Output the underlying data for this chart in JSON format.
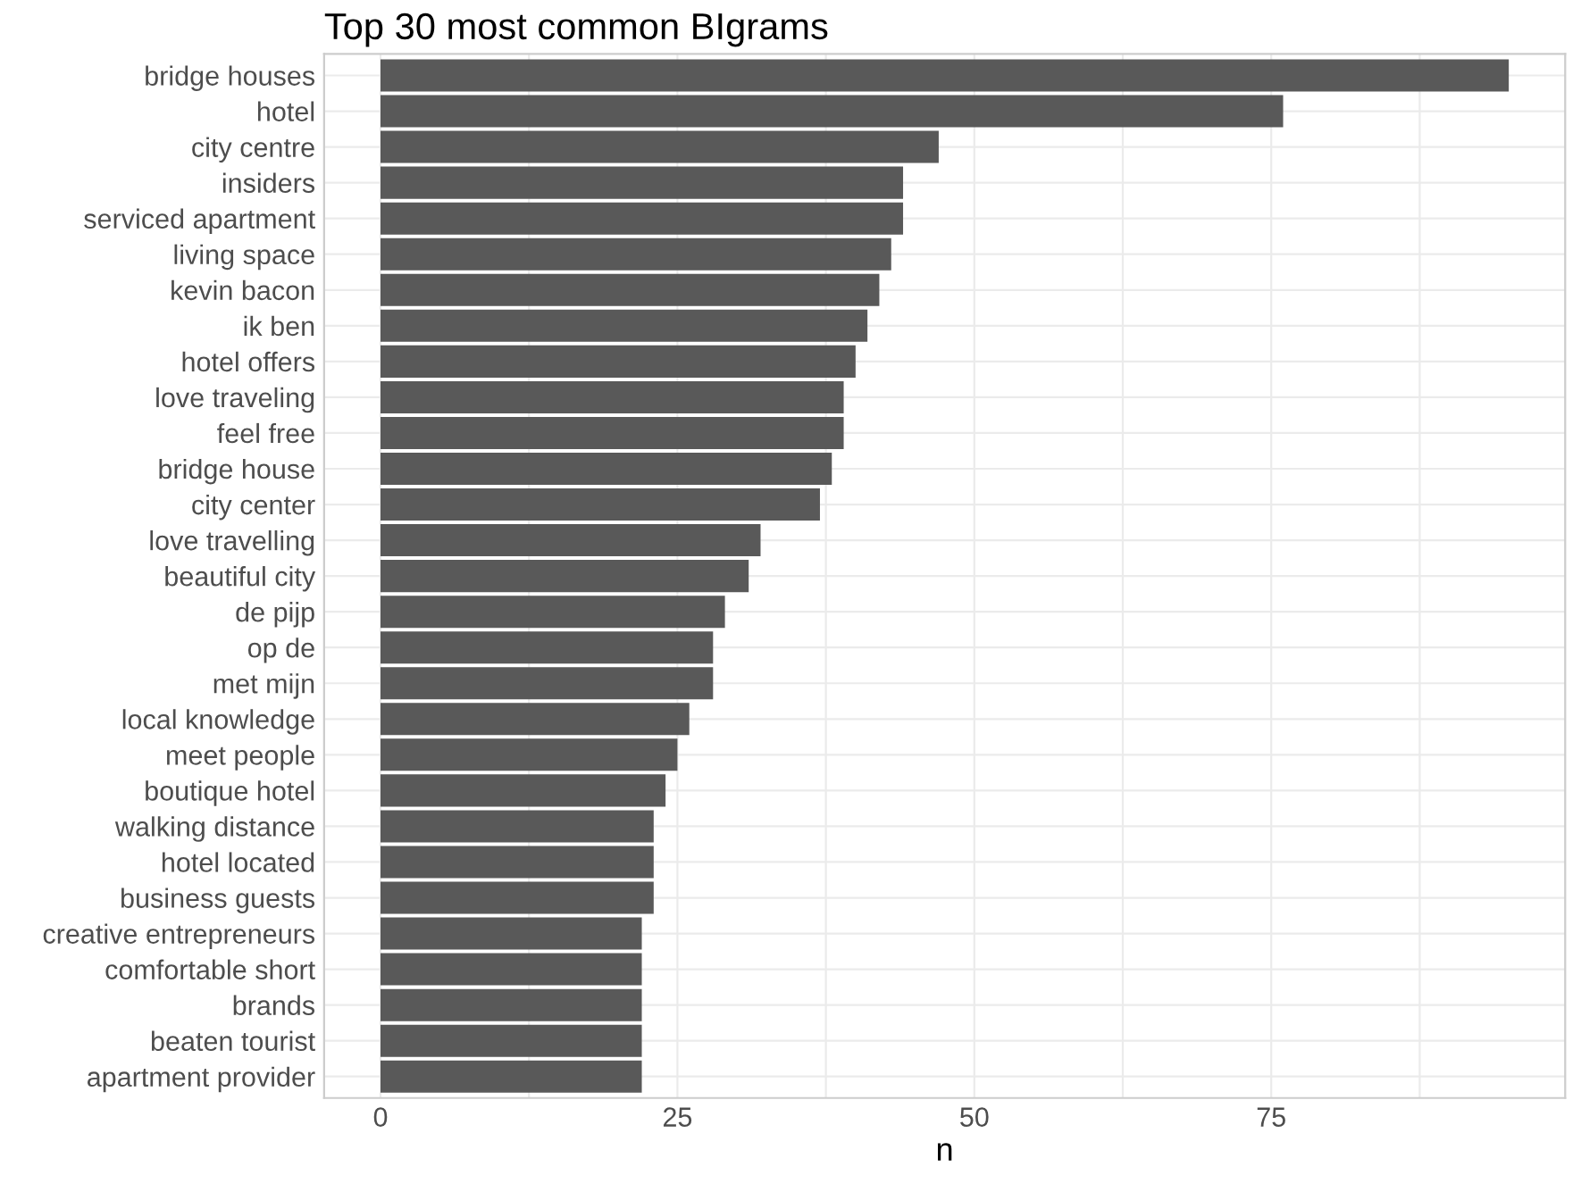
{
  "chart_data": {
    "type": "bar",
    "orientation": "horizontal",
    "title": "Top 30 most common BIgrams",
    "xlabel": "n",
    "categories": [
      "bridge houses",
      "hotel",
      "city centre",
      "insiders",
      "serviced apartment",
      "living space",
      "kevin bacon",
      "ik ben",
      "hotel offers",
      "love traveling",
      "feel free",
      "bridge house",
      "city center",
      "love travelling",
      "beautiful city",
      "de pijp",
      "op de",
      "met mijn",
      "local knowledge",
      "meet people",
      "boutique hotel",
      "walking distance",
      "hotel located",
      "business guests",
      "creative entrepreneurs",
      "comfortable short",
      "brands",
      "beaten tourist",
      "apartment provider"
    ],
    "values": [
      95,
      76,
      47,
      44,
      44,
      43,
      42,
      41,
      40,
      39,
      39,
      38,
      37,
      32,
      31,
      29,
      28,
      28,
      26,
      25,
      24,
      23,
      23,
      23,
      22,
      22,
      22,
      22,
      22
    ],
    "color": "#595959",
    "xlim": [
      -4.75,
      99.75
    ],
    "xticks": [
      0,
      {
        "value": 12.5,
        "label": null
      },
      25,
      {
        "value": 37.5,
        "label": null
      },
      50,
      {
        "value": 62.5,
        "label": null
      },
      75,
      {
        "value": 87.5,
        "label": null
      }
    ],
    "grid": true
  }
}
